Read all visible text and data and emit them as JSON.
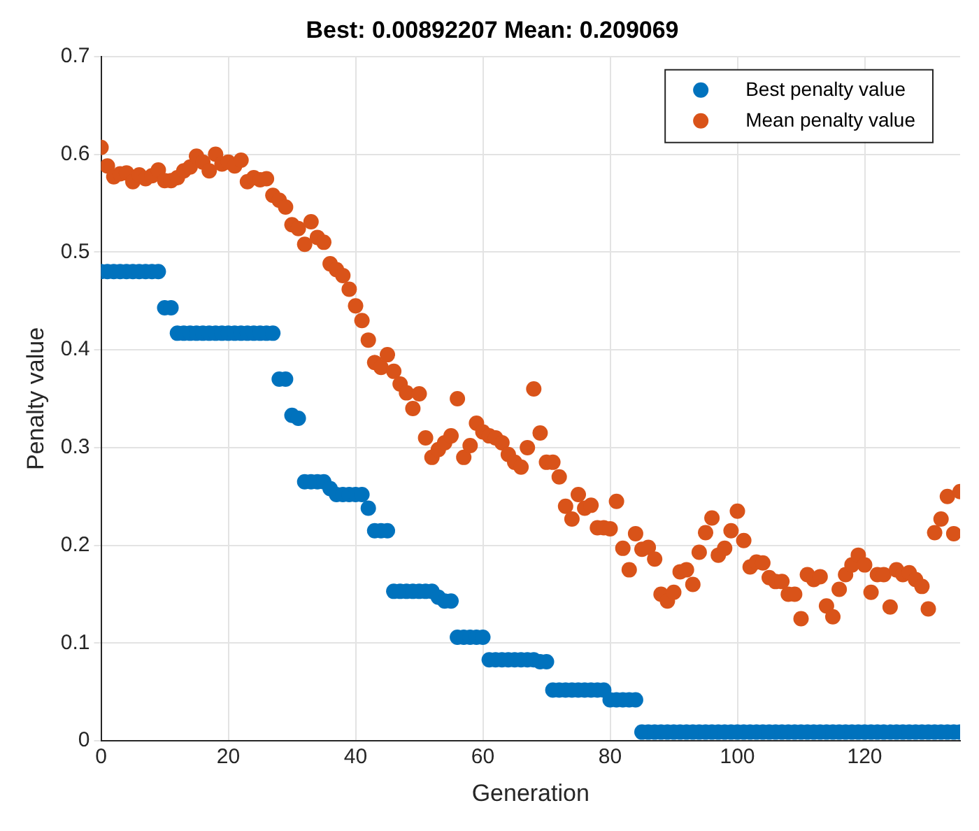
{
  "chart_data": {
    "type": "scatter",
    "title": "Best: 0.00892207 Mean: 0.209069",
    "xlabel": "Generation",
    "ylabel": "Penalty value",
    "x": [
      0,
      1,
      2,
      3,
      4,
      5,
      6,
      7,
      8,
      9,
      10,
      11,
      12,
      13,
      14,
      15,
      16,
      17,
      18,
      19,
      20,
      21,
      22,
      23,
      24,
      25,
      26,
      27,
      28,
      29,
      30,
      31,
      32,
      33,
      34,
      35,
      36,
      37,
      38,
      39,
      40,
      41,
      42,
      43,
      44,
      45,
      46,
      47,
      48,
      49,
      50,
      51,
      52,
      53,
      54,
      55,
      56,
      57,
      58,
      59,
      60,
      61,
      62,
      63,
      64,
      65,
      66,
      67,
      68,
      69,
      70,
      71,
      72,
      73,
      74,
      75,
      76,
      77,
      78,
      79,
      80,
      81,
      82,
      83,
      84,
      85,
      86,
      87,
      88,
      89,
      90,
      91,
      92,
      93,
      94,
      95,
      96,
      97,
      98,
      99,
      100,
      101,
      102,
      103,
      104,
      105,
      106,
      107,
      108,
      109,
      110,
      111,
      112,
      113,
      114,
      115,
      116,
      117,
      118,
      119,
      120,
      121,
      122,
      123,
      124,
      125,
      126,
      127,
      128,
      129,
      130,
      131,
      132,
      133,
      134,
      135
    ],
    "series": [
      {
        "name": "Best penalty value",
        "color": "#0072bd",
        "values": [
          0.48,
          0.48,
          0.48,
          0.48,
          0.48,
          0.48,
          0.48,
          0.48,
          0.48,
          0.48,
          0.443,
          0.443,
          0.417,
          0.417,
          0.417,
          0.417,
          0.417,
          0.417,
          0.417,
          0.417,
          0.417,
          0.417,
          0.417,
          0.417,
          0.417,
          0.417,
          0.417,
          0.417,
          0.37,
          0.37,
          0.333,
          0.33,
          0.265,
          0.265,
          0.265,
          0.265,
          0.258,
          0.252,
          0.252,
          0.252,
          0.252,
          0.252,
          0.238,
          0.215,
          0.215,
          0.215,
          0.153,
          0.153,
          0.153,
          0.153,
          0.153,
          0.153,
          0.153,
          0.147,
          0.143,
          0.143,
          0.106,
          0.106,
          0.106,
          0.106,
          0.106,
          0.083,
          0.083,
          0.083,
          0.083,
          0.083,
          0.083,
          0.083,
          0.083,
          0.081,
          0.081,
          0.052,
          0.052,
          0.052,
          0.052,
          0.052,
          0.052,
          0.052,
          0.052,
          0.052,
          0.042,
          0.042,
          0.042,
          0.042,
          0.042,
          0.009,
          0.009,
          0.009,
          0.009,
          0.009,
          0.009,
          0.009,
          0.009,
          0.009,
          0.009,
          0.009,
          0.009,
          0.009,
          0.009,
          0.009,
          0.009,
          0.009,
          0.009,
          0.009,
          0.009,
          0.009,
          0.009,
          0.009,
          0.009,
          0.009,
          0.009,
          0.009,
          0.009,
          0.009,
          0.009,
          0.009,
          0.009,
          0.009,
          0.009,
          0.009,
          0.009,
          0.009,
          0.009,
          0.009,
          0.009,
          0.009,
          0.009,
          0.009,
          0.009,
          0.009,
          0.009,
          0.009,
          0.009,
          0.009,
          0.009,
          0.009
        ]
      },
      {
        "name": "Mean penalty value",
        "color": "#d95319",
        "values": [
          0.607,
          0.588,
          0.577,
          0.58,
          0.581,
          0.572,
          0.579,
          0.575,
          0.578,
          0.584,
          0.573,
          0.573,
          0.576,
          0.583,
          0.587,
          0.598,
          0.592,
          0.583,
          0.6,
          0.59,
          0.592,
          0.588,
          0.594,
          0.572,
          0.576,
          0.574,
          0.575,
          0.558,
          0.553,
          0.546,
          0.528,
          0.524,
          0.508,
          0.531,
          0.515,
          0.51,
          0.488,
          0.482,
          0.476,
          0.462,
          0.445,
          0.43,
          0.41,
          0.387,
          0.382,
          0.395,
          0.378,
          0.365,
          0.356,
          0.34,
          0.355,
          0.31,
          0.29,
          0.298,
          0.305,
          0.312,
          0.35,
          0.29,
          0.302,
          0.325,
          0.316,
          0.312,
          0.31,
          0.305,
          0.293,
          0.285,
          0.28,
          0.3,
          0.36,
          0.315,
          0.285,
          0.285,
          0.27,
          0.24,
          0.227,
          0.252,
          0.238,
          0.241,
          0.218,
          0.218,
          0.217,
          0.245,
          0.197,
          0.175,
          0.212,
          0.196,
          0.198,
          0.186,
          0.15,
          0.143,
          0.152,
          0.173,
          0.175,
          0.16,
          0.193,
          0.213,
          0.228,
          0.19,
          0.197,
          0.215,
          0.235,
          0.205,
          0.178,
          0.183,
          0.182,
          0.167,
          0.163,
          0.163,
          0.15,
          0.15,
          0.125,
          0.17,
          0.165,
          0.168,
          0.138,
          0.127,
          0.155,
          0.17,
          0.18,
          0.19,
          0.18,
          0.152,
          0.17,
          0.17,
          0.137,
          0.175,
          0.17,
          0.172,
          0.165,
          0.158,
          0.135,
          0.213,
          0.227,
          0.25,
          0.212,
          0.255
        ]
      }
    ],
    "xlim": [
      0,
      135
    ],
    "xticks": [
      0,
      20,
      40,
      60,
      80,
      100,
      120
    ],
    "ylim": [
      0,
      0.7
    ],
    "yticks": [
      0,
      0.1,
      0.2,
      0.3,
      0.4,
      0.5,
      0.6,
      0.7
    ],
    "grid": true,
    "legend": "top right",
    "marker": "circle"
  }
}
